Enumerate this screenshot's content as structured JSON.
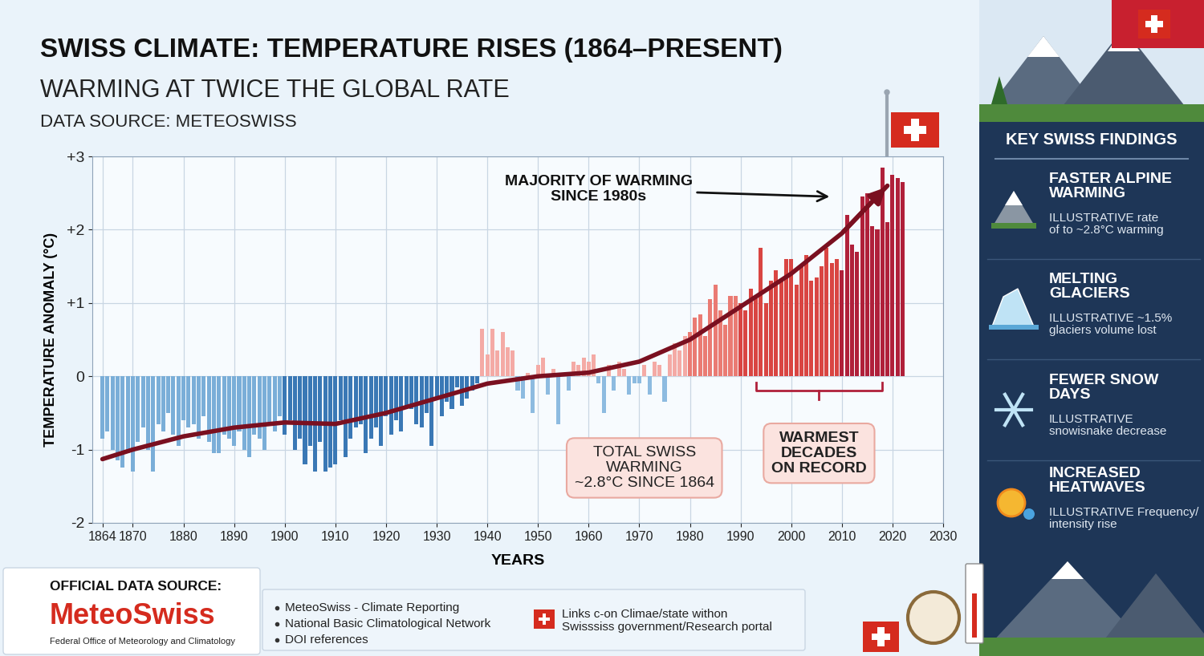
{
  "header": {
    "title": "SWISS CLIMATE: TEMPERATURE RISES (1864–PRESENT)",
    "subtitle": "WARMING AT TWICE THE GLOBAL RATE",
    "source": "DATA SOURCE: METEOSWISS"
  },
  "chart_data": {
    "type": "bar",
    "x": [
      1864,
      1865,
      1866,
      1867,
      1868,
      1869,
      1870,
      1871,
      1872,
      1873,
      1874,
      1875,
      1876,
      1877,
      1878,
      1879,
      1880,
      1881,
      1882,
      1883,
      1884,
      1885,
      1886,
      1887,
      1888,
      1889,
      1890,
      1891,
      1892,
      1893,
      1894,
      1895,
      1896,
      1897,
      1898,
      1899,
      1900,
      1901,
      1902,
      1903,
      1904,
      1905,
      1906,
      1907,
      1908,
      1909,
      1910,
      1911,
      1912,
      1913,
      1914,
      1915,
      1916,
      1917,
      1918,
      1919,
      1920,
      1921,
      1922,
      1923,
      1924,
      1925,
      1926,
      1927,
      1928,
      1929,
      1930,
      1931,
      1932,
      1933,
      1934,
      1935,
      1936,
      1937,
      1938,
      1939,
      1940,
      1941,
      1942,
      1943,
      1944,
      1945,
      1946,
      1947,
      1948,
      1949,
      1950,
      1951,
      1952,
      1953,
      1954,
      1955,
      1956,
      1957,
      1958,
      1959,
      1960,
      1961,
      1962,
      1963,
      1964,
      1965,
      1966,
      1967,
      1968,
      1969,
      1970,
      1971,
      1972,
      1973,
      1974,
      1975,
      1976,
      1977,
      1978,
      1979,
      1980,
      1981,
      1982,
      1983,
      1984,
      1985,
      1986,
      1987,
      1988,
      1989,
      1990,
      1991,
      1992,
      1993,
      1994,
      1995,
      1996,
      1997,
      1998,
      1999,
      2000,
      2001,
      2002,
      2003,
      2004,
      2005,
      2006,
      2007,
      2008,
      2009,
      2010,
      2011,
      2012,
      2013,
      2014,
      2015,
      2016,
      2017,
      2018,
      2019,
      2020,
      2021,
      2022
    ],
    "series": [
      {
        "type": "bar",
        "values": [
          -0.85,
          -0.75,
          -1.0,
          -1.15,
          -1.25,
          -1.05,
          -1.3,
          -0.9,
          -0.7,
          -1.0,
          -1.3,
          -0.65,
          -0.75,
          -0.5,
          -0.8,
          -0.95,
          -0.6,
          -0.7,
          -0.65,
          -0.85,
          -0.55,
          -0.9,
          -1.05,
          -1.05,
          -0.8,
          -0.85,
          -0.95,
          -0.75,
          -1.0,
          -1.1,
          -0.8,
          -0.85,
          -1.0,
          -0.65,
          -0.75,
          -0.55,
          -0.8,
          -0.6,
          -1.0,
          -0.85,
          -1.2,
          -0.95,
          -1.3,
          -0.9,
          -1.3,
          -1.25,
          -1.2,
          -0.6,
          -1.1,
          -0.85,
          -0.7,
          -0.65,
          -1.05,
          -0.85,
          -0.7,
          -0.95,
          -0.55,
          -0.8,
          -0.6,
          -0.75,
          -0.4,
          -0.45,
          -0.65,
          -0.7,
          -0.5,
          -0.95,
          -0.3,
          -0.55,
          -0.35,
          -0.45,
          -0.15,
          -0.4,
          -0.3,
          -0.2,
          -0.1,
          0.65,
          0.3,
          0.65,
          0.35,
          0.6,
          0.4,
          0.35,
          -0.2,
          -0.3,
          0.05,
          -0.5,
          0.15,
          0.25,
          -0.25,
          0.1,
          -0.65,
          0.05,
          -0.2,
          0.2,
          0.15,
          0.25,
          0.2,
          0.3,
          -0.1,
          -0.5,
          0.15,
          -0.2,
          0.2,
          0.1,
          -0.25,
          -0.1,
          -0.1,
          0.15,
          -0.25,
          0.2,
          0.15,
          -0.35,
          0.3,
          0.45,
          0.35,
          0.55,
          0.6,
          0.8,
          0.85,
          0.55,
          1.05,
          1.25,
          0.9,
          0.7,
          1.1,
          1.1,
          1.0,
          0.9,
          1.2,
          1.1,
          1.75,
          1.0,
          1.3,
          1.45,
          1.3,
          1.6,
          1.6,
          1.25,
          1.5,
          1.65,
          1.3,
          1.35,
          1.5,
          1.75,
          1.55,
          1.6,
          1.45,
          2.2,
          1.8,
          1.7,
          2.45,
          2.5,
          2.05,
          2.0,
          2.85,
          2.1,
          2.75,
          2.7,
          2.65
        ],
        "colors": [
          "#7aaed8",
          "#7aaed8",
          "#7aaed8",
          "#7aaed8",
          "#7aaed8",
          "#7aaed8",
          "#7aaed8",
          "#7aaed8",
          "#7aaed8",
          "#7aaed8",
          "#7aaed8",
          "#7aaed8",
          "#7aaed8",
          "#7aaed8",
          "#7aaed8",
          "#7aaed8",
          "#7aaed8",
          "#7aaed8",
          "#7aaed8",
          "#7aaed8",
          "#7aaed8",
          "#7aaed8",
          "#7aaed8",
          "#7aaed8",
          "#7aaed8",
          "#7aaed8",
          "#7aaed8",
          "#7aaed8",
          "#7aaed8",
          "#7aaed8",
          "#7aaed8",
          "#7aaed8",
          "#7aaed8",
          "#7aaed8",
          "#7aaed8",
          "#7aaed8",
          "#3a78b5",
          "#3a78b5",
          "#3a78b5",
          "#3a78b5",
          "#3a78b5",
          "#3a78b5",
          "#3a78b5",
          "#3a78b5",
          "#3a78b5",
          "#3a78b5",
          "#3a78b5",
          "#3a78b5",
          "#3a78b5",
          "#3a78b5",
          "#3a78b5",
          "#3a78b5",
          "#3a78b5",
          "#3a78b5",
          "#3a78b5",
          "#3a78b5",
          "#3a78b5",
          "#3a78b5",
          "#3a78b5",
          "#3a78b5",
          "#3a78b5",
          "#3a78b5",
          "#3a78b5",
          "#3a78b5",
          "#3a78b5",
          "#3a78b5",
          "#3a78b5",
          "#3a78b5",
          "#3a78b5",
          "#3a78b5",
          "#3a78b5",
          "#3a78b5",
          "#3a78b5",
          "#3a78b5",
          "#3a78b5",
          "#f4aaa5",
          "#f4aaa5",
          "#f4aaa5",
          "#f4aaa5",
          "#f4aaa5",
          "#f4aaa5",
          "#f4aaa5",
          "#8dbbe0",
          "#8dbbe0",
          "#f4aaa5",
          "#8dbbe0",
          "#f4aaa5",
          "#f4aaa5",
          "#8dbbe0",
          "#f4aaa5",
          "#8dbbe0",
          "#f4aaa5",
          "#8dbbe0",
          "#f4aaa5",
          "#f4aaa5",
          "#f4aaa5",
          "#f4aaa5",
          "#f4aaa5",
          "#8dbbe0",
          "#8dbbe0",
          "#f4aaa5",
          "#8dbbe0",
          "#f4aaa5",
          "#f4aaa5",
          "#8dbbe0",
          "#8dbbe0",
          "#8dbbe0",
          "#f4aaa5",
          "#8dbbe0",
          "#f4aaa5",
          "#f4aaa5",
          "#8dbbe0",
          "#f4aaa5",
          "#f4aaa5",
          "#f4aaa5",
          "#f4aaa5",
          "#ea7b73",
          "#ea7b73",
          "#ea7b73",
          "#ea7b73",
          "#ea7b73",
          "#ea7b73",
          "#ea7b73",
          "#ea7b73",
          "#ea7b73",
          "#ea7b73",
          "#d94542",
          "#d94542",
          "#d94542",
          "#d94542",
          "#d94542",
          "#d94542",
          "#d94542",
          "#d94542",
          "#d94542",
          "#d94542",
          "#d94542",
          "#d94542",
          "#d94542",
          "#d94542",
          "#d94542",
          "#d94542",
          "#d94542",
          "#d94542",
          "#d94542",
          "#d94542",
          "#b0203a",
          "#b0203a",
          "#b0203a",
          "#b0203a",
          "#b0203a",
          "#b0203a",
          "#b0203a",
          "#b0203a",
          "#b0203a",
          "#b0203a",
          "#b0203a",
          "#b0203a",
          "#b0203a"
        ]
      },
      {
        "type": "line",
        "color": "#7a1020",
        "x": [
          1864,
          1870,
          1880,
          1890,
          1900,
          1910,
          1920,
          1930,
          1940,
          1950,
          1960,
          1970,
          1980,
          1990,
          2000,
          2010,
          2019
        ],
        "values": [
          -1.13,
          -1.0,
          -0.82,
          -0.7,
          -0.63,
          -0.65,
          -0.5,
          -0.3,
          -0.1,
          0.0,
          0.05,
          0.2,
          0.5,
          0.95,
          1.4,
          1.95,
          2.6
        ]
      }
    ],
    "xlim": [
      1862,
      2030
    ],
    "xticks": [
      1864,
      1870,
      1880,
      1890,
      1900,
      1910,
      1920,
      1930,
      1940,
      1950,
      1960,
      1970,
      1980,
      1990,
      2000,
      2010,
      2020,
      2030
    ],
    "ylim": [
      -2,
      3
    ],
    "yticks": [
      -2,
      -1,
      0,
      {
        "value": 1,
        "label": "+1"
      },
      {
        "value": 2,
        "label": "+2"
      },
      {
        "value": 3,
        "label": "+3"
      }
    ],
    "x_label": "YEARS",
    "y_label": "TEMPERATURE ANOMALY (°C)",
    "grid": true,
    "annotations": [
      {
        "text": "MAJORITY OF WARMING\nSINCE 1980s"
      },
      {
        "text": "TOTAL SWISS\nWARMING\n~2.8°C SINCE 1864"
      },
      {
        "text": "WARMEST\nDECADES\nON RECORD",
        "span": [
          1993,
          2018
        ]
      }
    ]
  },
  "panel": {
    "title": "KEY SWISS FINDINGS",
    "items": [
      {
        "title": "FASTER ALPINE\nWARMING",
        "text": "ILLUSTRATIVE rate\nof to ~2.8°C warming"
      },
      {
        "title": "MELTING\nGLACIERS",
        "text": "ILLUSTRATIVE ~1.5%\nglaciers volume lost"
      },
      {
        "title": "FEWER SNOW\nDAYS",
        "text": "ILLUSTRATIVE\nsnowisnake decrease"
      },
      {
        "title": "INCREASED\nHEATWAVES",
        "text": "ILLUSTRATIVE Frequency/\nintensity rise"
      }
    ]
  },
  "footer": {
    "heading": "OFFICIAL DATA SOURCE:",
    "name": "MeteoSwiss",
    "agency": "Federal Office of Meteorology and Climatology",
    "links": [
      "MeteoSwiss - Climate Reporting",
      "National Basic Climatological Network",
      "DOI references"
    ],
    "note": "Links c-on Climae/state withon\nSwisssiss government/Research portal"
  }
}
